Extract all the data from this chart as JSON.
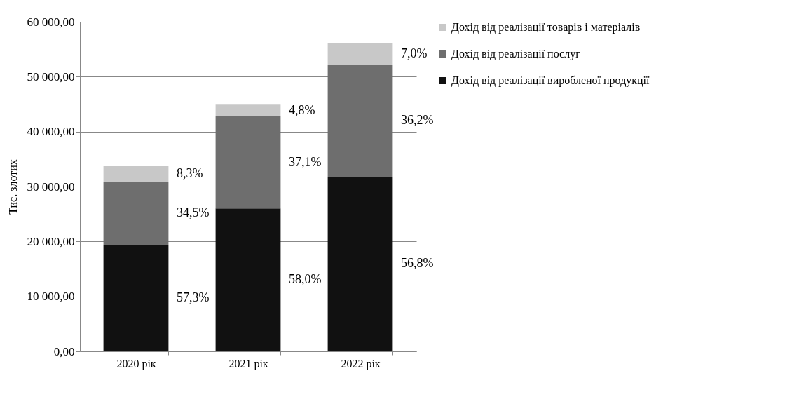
{
  "chart_data": {
    "type": "bar",
    "stacked": true,
    "ylabel": "Тис. злотих",
    "categories": [
      "2020 рік",
      "2021 рік",
      "2022 рік"
    ],
    "series": [
      {
        "name": "Дохід від реалізації виробленої продукції",
        "color": "#111111",
        "values": [
          19300,
          26000,
          31800
        ]
      },
      {
        "name": "Дохід від реалізації послуг",
        "color": "#6e6e6e",
        "values": [
          11600,
          16800,
          20300
        ]
      },
      {
        "name": "Дохід від реалізації товарів і матеріалів",
        "color": "#c8c8c8",
        "values": [
          2800,
          2100,
          4000
        ]
      }
    ],
    "annotations": [
      "57,3%",
      "34,5%",
      "8,3%",
      "58,0%",
      "37,1%",
      "4,8%",
      "56,8%",
      "36,2%",
      "7,0%"
    ],
    "ylim": [
      0,
      60000
    ],
    "yticks": [
      {
        "value": 0,
        "label": "0,00"
      },
      {
        "value": 10000,
        "label": "10 000,00"
      },
      {
        "value": 20000,
        "label": "20 000,00"
      },
      {
        "value": 30000,
        "label": "30 000,00"
      },
      {
        "value": 40000,
        "label": "40 000,00"
      },
      {
        "value": 50000,
        "label": "50 000,00"
      },
      {
        "value": 60000,
        "label": "60 000,00"
      }
    ],
    "grid": "y",
    "legend": "right"
  }
}
